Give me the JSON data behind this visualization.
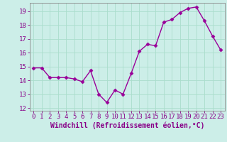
{
  "x": [
    0,
    1,
    2,
    3,
    4,
    5,
    6,
    7,
    8,
    9,
    10,
    11,
    12,
    13,
    14,
    15,
    16,
    17,
    18,
    19,
    20,
    21,
    22,
    23
  ],
  "y": [
    14.9,
    14.9,
    14.2,
    14.2,
    14.2,
    14.1,
    13.9,
    14.7,
    13.0,
    12.4,
    13.3,
    13.0,
    14.5,
    16.1,
    16.6,
    16.5,
    18.2,
    18.4,
    18.9,
    19.2,
    19.3,
    18.3,
    17.2,
    16.2
  ],
  "line_color": "#990099",
  "marker": "D",
  "markersize": 2.5,
  "linewidth": 1.0,
  "background_color": "#cceee8",
  "grid_color": "#aaddcc",
  "xlabel": "Windchill (Refroidissement éolien,°C)",
  "xlabel_fontsize": 7,
  "tick_fontsize": 6.5,
  "yticks": [
    12,
    13,
    14,
    15,
    16,
    17,
    18,
    19
  ],
  "xticks": [
    0,
    1,
    2,
    3,
    4,
    5,
    6,
    7,
    8,
    9,
    10,
    11,
    12,
    13,
    14,
    15,
    16,
    17,
    18,
    19,
    20,
    21,
    22,
    23
  ],
  "xlim": [
    -0.5,
    23.5
  ],
  "ylim": [
    11.8,
    19.6
  ],
  "tick_color": "#880088",
  "label_color": "#880088"
}
